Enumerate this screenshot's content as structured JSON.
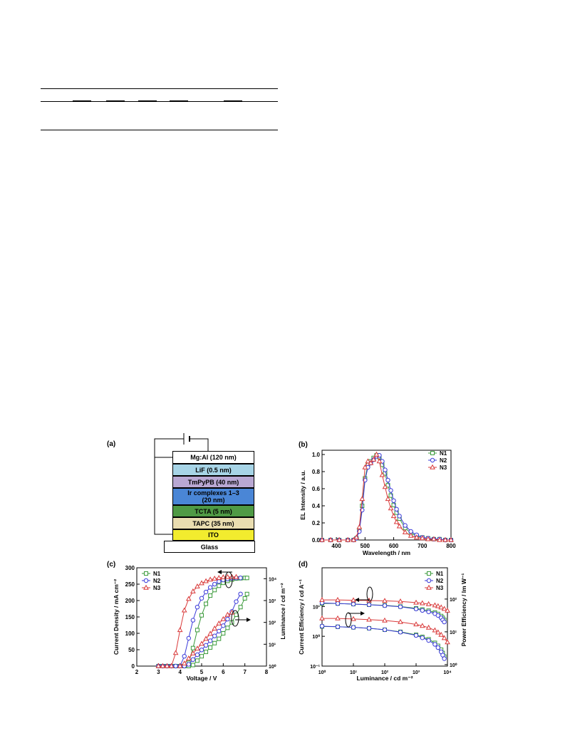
{
  "panel_labels": {
    "a": "(a)",
    "b": "(b)",
    "c": "(c)",
    "d": "(d)"
  },
  "device": {
    "layers": [
      {
        "label": "Mg:Al (120 nm)",
        "color": "#ffffff"
      },
      {
        "label": "LiF (0.5 nm)",
        "color": "#a7d4e6"
      },
      {
        "label": "TmPyPB (40 nm)",
        "color": "#b9a8d3"
      },
      {
        "label": "Ir complexes 1–3\n(20 nm)",
        "color": "#4a86d6"
      },
      {
        "label": "TCTA (5 nm)",
        "color": "#4f9a45"
      },
      {
        "label": "TAPC (35 nm)",
        "color": "#e9ddb0"
      },
      {
        "label": "ITO",
        "color": "#f2ec2e"
      },
      {
        "label": "Glass",
        "color": "#ffffff"
      }
    ]
  },
  "legend": [
    "N1",
    "N2",
    "N3"
  ],
  "series_colors": {
    "N1": "#3a9a3a",
    "N2": "#3a3ad9",
    "N3": "#d93a3a"
  },
  "chart_data": [
    {
      "panel": "(b)",
      "type": "line",
      "xlabel": "Wavelength / nm",
      "ylabel": "EL Intensity / a.u.",
      "xlim": [
        350,
        800
      ],
      "ylim": [
        0,
        1.05
      ],
      "xticks": [
        400,
        500,
        600,
        700,
        800
      ],
      "yticks": [
        0.0,
        0.2,
        0.4,
        0.6,
        0.8,
        1.0
      ],
      "legend_position": "top-right",
      "series": [
        {
          "name": "N1",
          "x": [
            350,
            380,
            410,
            440,
            460,
            470,
            480,
            490,
            500,
            510,
            520,
            530,
            540,
            550,
            560,
            570,
            580,
            590,
            600,
            610,
            620,
            640,
            660,
            680,
            700,
            720,
            740,
            760,
            780,
            800
          ],
          "y": [
            0,
            0,
            0,
            0,
            0,
            0.02,
            0.12,
            0.4,
            0.72,
            0.88,
            0.92,
            0.96,
            0.99,
            0.97,
            0.88,
            0.78,
            0.64,
            0.52,
            0.41,
            0.32,
            0.25,
            0.14,
            0.08,
            0.05,
            0.03,
            0.02,
            0.01,
            0.01,
            0,
            0
          ]
        },
        {
          "name": "N2",
          "x": [
            350,
            380,
            410,
            440,
            460,
            470,
            480,
            490,
            500,
            510,
            520,
            530,
            540,
            550,
            560,
            570,
            580,
            590,
            600,
            610,
            620,
            640,
            660,
            680,
            700,
            720,
            740,
            760,
            780,
            800
          ],
          "y": [
            0,
            0,
            0,
            0,
            0,
            0.02,
            0.1,
            0.35,
            0.7,
            0.85,
            0.9,
            0.94,
            0.98,
            0.99,
            0.92,
            0.82,
            0.7,
            0.58,
            0.46,
            0.36,
            0.28,
            0.17,
            0.1,
            0.06,
            0.03,
            0.02,
            0.01,
            0.01,
            0,
            0
          ]
        },
        {
          "name": "N3",
          "x": [
            350,
            380,
            410,
            440,
            460,
            470,
            480,
            490,
            500,
            510,
            520,
            530,
            540,
            550,
            560,
            570,
            580,
            590,
            600,
            610,
            620,
            640,
            660,
            680,
            700,
            720,
            740,
            760,
            780,
            800
          ],
          "y": [
            0,
            0,
            0,
            0,
            0,
            0.03,
            0.15,
            0.48,
            0.85,
            0.92,
            0.9,
            0.94,
            1.0,
            0.92,
            0.76,
            0.62,
            0.48,
            0.37,
            0.28,
            0.21,
            0.16,
            0.09,
            0.05,
            0.03,
            0.02,
            0.01,
            0.01,
            0,
            0,
            0
          ]
        }
      ]
    },
    {
      "panel": "(c)",
      "type": "line",
      "xlabel": "Voltage / V",
      "ylabel": "Current Density / mA cm⁻²",
      "ylabel_right": "Luminance / cd m⁻²",
      "xlim": [
        2,
        8
      ],
      "ylim": [
        0,
        300
      ],
      "ylim_right_log": [
        0,
        4.5
      ],
      "xticks": [
        2,
        3,
        4,
        5,
        6,
        7,
        8
      ],
      "yticks": [
        0,
        50,
        100,
        150,
        200,
        250,
        300
      ],
      "yticks_right": [
        "10⁰",
        "10¹",
        "10²",
        "10³",
        "10⁴"
      ],
      "legend_position": "top-left",
      "series": [
        {
          "name": "N1",
          "axis": "left",
          "x": [
            3.0,
            3.2,
            3.4,
            3.6,
            3.8,
            4.0,
            4.2,
            4.4,
            4.6,
            4.8,
            5.0,
            5.2,
            5.4,
            5.6,
            5.8,
            6.0,
            6.2,
            6.4,
            6.6,
            6.8,
            7.0,
            7.1
          ],
          "y": [
            0,
            0,
            0,
            0,
            0,
            0,
            0,
            10,
            55,
            110,
            155,
            190,
            215,
            232,
            245,
            254,
            260,
            264,
            267,
            268,
            269,
            269
          ]
        },
        {
          "name": "N2",
          "axis": "left",
          "x": [
            3.0,
            3.2,
            3.4,
            3.6,
            3.8,
            4.0,
            4.2,
            4.4,
            4.6,
            4.8,
            5.0,
            5.2,
            5.4,
            5.6,
            5.8,
            6.0,
            6.2,
            6.4,
            6.6,
            6.8
          ],
          "y": [
            0,
            0,
            0,
            0,
            0,
            0,
            30,
            85,
            140,
            180,
            207,
            226,
            240,
            250,
            258,
            263,
            266,
            268,
            269,
            269
          ]
        },
        {
          "name": "N3",
          "axis": "left",
          "x": [
            3.0,
            3.2,
            3.4,
            3.6,
            3.8,
            4.0,
            4.2,
            4.4,
            4.6,
            4.8,
            5.0,
            5.2,
            5.4,
            5.6,
            5.8,
            6.0,
            6.2,
            6.4,
            6.6
          ],
          "y": [
            0,
            0,
            0,
            0,
            40,
            110,
            170,
            205,
            228,
            243,
            253,
            259,
            264,
            267,
            269,
            271,
            272,
            272,
            272
          ]
        },
        {
          "name": "N1",
          "axis": "right",
          "x": [
            4.4,
            4.6,
            4.8,
            5.0,
            5.2,
            5.4,
            5.6,
            5.8,
            6.0,
            6.2,
            6.4,
            6.6,
            6.8,
            7.0,
            7.1
          ],
          "y": [
            0,
            0.05,
            0.25,
            0.45,
            0.65,
            0.85,
            1.05,
            1.25,
            1.5,
            1.75,
            2.0,
            2.35,
            2.7,
            3.1,
            3.3
          ]
        },
        {
          "name": "N2",
          "axis": "right",
          "x": [
            4.2,
            4.4,
            4.6,
            4.8,
            5.0,
            5.2,
            5.4,
            5.6,
            5.8,
            6.0,
            6.2,
            6.4,
            6.6,
            6.8
          ],
          "y": [
            0,
            0.08,
            0.3,
            0.52,
            0.74,
            0.95,
            1.16,
            1.38,
            1.6,
            1.85,
            2.15,
            2.5,
            2.95,
            3.3
          ]
        },
        {
          "name": "N3",
          "axis": "right",
          "x": [
            4.0,
            4.2,
            4.4,
            4.6,
            4.8,
            5.0,
            5.2,
            5.4,
            5.6,
            5.8,
            6.0,
            6.2,
            6.4
          ],
          "y": [
            0,
            0.12,
            0.35,
            0.58,
            0.8,
            1.02,
            1.25,
            1.48,
            1.72,
            1.95,
            2.15,
            2.35,
            2.45
          ]
        }
      ]
    },
    {
      "panel": "(d)",
      "type": "line",
      "xlabel": "Luminance / cd m⁻²",
      "ylabel": "Current Efficiency / cd A⁻¹",
      "ylabel_right": "Power Efficiency / lm W⁻¹",
      "xscale": "log",
      "yscale": "log",
      "xlim_log": [
        0,
        4
      ],
      "ylim_log": [
        -1,
        2.3
      ],
      "xticks": [
        "10⁰",
        "10¹",
        "10²",
        "10³",
        "10⁴"
      ],
      "yticks": [
        "10⁻¹",
        "10⁰",
        "10¹"
      ],
      "yticks_right": [
        "10⁰",
        "10¹",
        "10²"
      ],
      "legend_position": "top-right",
      "series": [
        {
          "name": "N1",
          "quantity": "current efficiency",
          "x_log": [
            0,
            0.5,
            1,
            1.5,
            2,
            2.5,
            3,
            3.2,
            3.4,
            3.6,
            3.7,
            3.8,
            3.85,
            3.9
          ],
          "y_log": [
            1.1,
            1.1,
            1.08,
            1.06,
            1.04,
            1.0,
            0.94,
            0.9,
            0.86,
            0.8,
            0.75,
            0.68,
            0.62,
            0.55
          ]
        },
        {
          "name": "N2",
          "quantity": "current efficiency",
          "x_log": [
            0,
            0.5,
            1,
            1.5,
            2,
            2.5,
            3,
            3.2,
            3.4,
            3.6,
            3.7,
            3.8,
            3.85,
            3.9
          ],
          "y_log": [
            1.12,
            1.1,
            1.08,
            1.06,
            1.03,
            0.99,
            0.92,
            0.87,
            0.82,
            0.76,
            0.7,
            0.62,
            0.55,
            0.48
          ]
        },
        {
          "name": "N3",
          "quantity": "current efficiency",
          "x_log": [
            0,
            0.5,
            1,
            1.5,
            2,
            2.5,
            3,
            3.2,
            3.4,
            3.6,
            3.7,
            3.8,
            3.9,
            4.0
          ],
          "y_log": [
            1.22,
            1.22,
            1.21,
            1.2,
            1.19,
            1.17,
            1.13,
            1.11,
            1.08,
            1.04,
            1.01,
            0.97,
            0.92,
            0.86
          ]
        },
        {
          "name": "N1",
          "quantity": "power efficiency",
          "x_log": [
            0,
            0.5,
            1,
            1.5,
            2,
            2.5,
            3,
            3.2,
            3.4,
            3.6,
            3.7,
            3.8,
            3.85,
            3.9
          ],
          "y_log": [
            0.33,
            0.32,
            0.3,
            0.27,
            0.22,
            0.15,
            0.05,
            -0.02,
            -0.1,
            -0.22,
            -0.32,
            -0.45,
            -0.56,
            -0.68
          ]
        },
        {
          "name": "N2",
          "quantity": "power efficiency",
          "x_log": [
            0,
            0.5,
            1,
            1.5,
            2,
            2.5,
            3,
            3.2,
            3.4,
            3.6,
            3.7,
            3.8,
            3.85,
            3.9
          ],
          "y_log": [
            0.34,
            0.32,
            0.3,
            0.27,
            0.22,
            0.14,
            0.03,
            -0.05,
            -0.14,
            -0.27,
            -0.38,
            -0.52,
            -0.63,
            -0.75
          ]
        },
        {
          "name": "N3",
          "quantity": "power efficiency",
          "x_log": [
            0,
            0.5,
            1,
            1.5,
            2,
            2.5,
            3,
            3.2,
            3.4,
            3.6,
            3.7,
            3.8,
            3.9,
            4.0
          ],
          "y_log": [
            0.6,
            0.6,
            0.58,
            0.56,
            0.53,
            0.48,
            0.4,
            0.35,
            0.29,
            0.2,
            0.13,
            0.05,
            -0.06,
            -0.2
          ]
        }
      ]
    }
  ]
}
